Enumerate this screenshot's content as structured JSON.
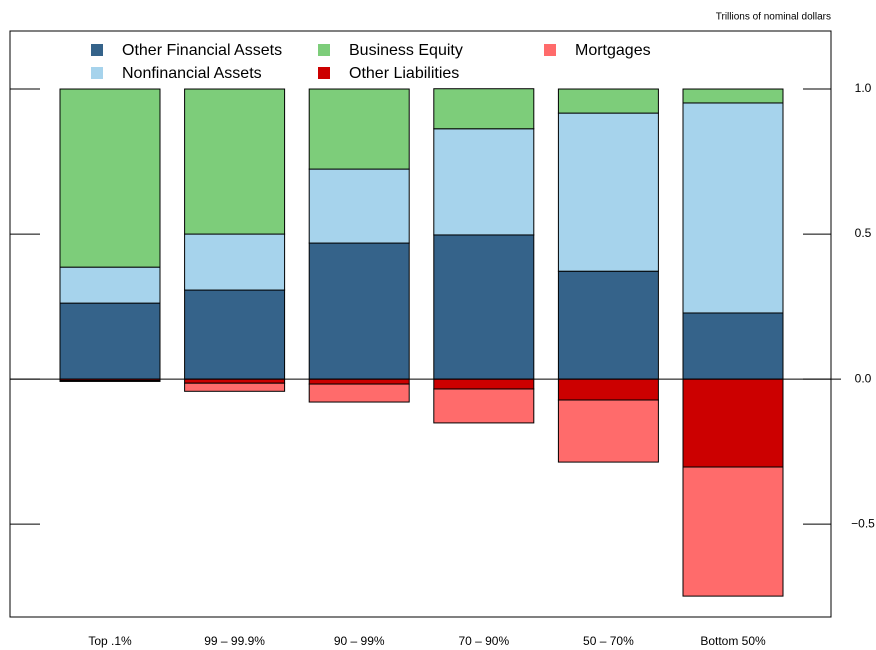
{
  "chart_data": {
    "type": "stacked-bar",
    "y_axis_label": "Trillions of nominal dollars",
    "categories": [
      "Top .1%",
      "99 – 99.9%",
      "90 – 99%",
      "70 – 90%",
      "50 – 70%",
      "Bottom 50%"
    ],
    "series": [
      {
        "name": "Other Financial Assets",
        "color": "#35638a",
        "values": [
          0.262,
          0.307,
          0.469,
          0.497,
          0.372,
          0.228
        ]
      },
      {
        "name": "Nonfinancial Assets",
        "color": "#a6d3ec",
        "values": [
          0.124,
          0.193,
          0.255,
          0.366,
          0.545,
          0.724
        ]
      },
      {
        "name": "Business Equity",
        "color": "#7dcd7a",
        "values": [
          0.614,
          0.5,
          0.276,
          0.138,
          0.083,
          0.048
        ]
      },
      {
        "name": "Other Liabilities",
        "color": "#cc0000",
        "values": [
          -0.005,
          -0.014,
          -0.017,
          -0.034,
          -0.072,
          -0.303
        ]
      },
      {
        "name": "Mortgages",
        "color": "#ff6b6b",
        "values": [
          -0.003,
          -0.028,
          -0.062,
          -0.117,
          -0.214,
          -0.445
        ]
      }
    ],
    "ylim": [
      -0.82,
      1.2
    ],
    "yticks": [
      {
        "value": 1.0,
        "label": "1.0"
      },
      {
        "value": 0.5,
        "label": "0.5"
      },
      {
        "value": 0.0,
        "label": "0.0"
      },
      {
        "value": -0.5,
        "label": "−0.5"
      }
    ],
    "legend_position": "top"
  }
}
